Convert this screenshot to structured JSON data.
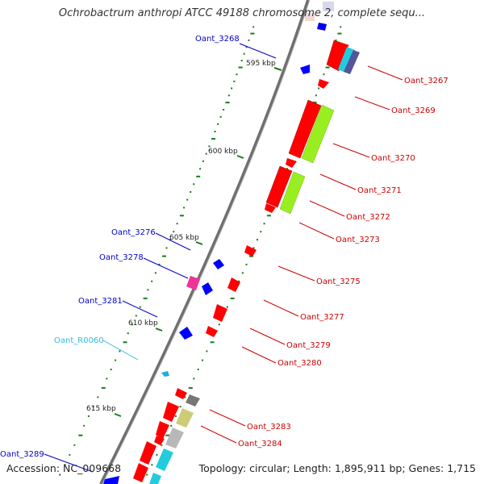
{
  "title": "Ochrobactrum anthropi ATCC 49188 chromosome 2, complete sequ...",
  "accession": "Accession: NC_009668",
  "topology": "Topology: circular; Length: 1,895,911 bp; Genes: 1,715",
  "colors": {
    "backbone": "#7f7f7f",
    "forward_gene": "#ff0000",
    "reverse_gene": "#0000ff",
    "rna_gene": "#33ccdd",
    "forward_label": "#cc0000",
    "reverse_label": "#0000cc",
    "rna_label": "#33bbdd",
    "tick_color": "#1a7a1a",
    "cog_green": "#99ee22",
    "cog_yellow": "#cccc77",
    "cog_magenta": "#ee3399",
    "cog_cyan": "#22ccdd",
    "cog_grey": "#777777",
    "cog_purple": "#555599"
  },
  "ruler": [
    "595 kbp",
    "600 kbp",
    "605 kbp",
    "610 kbp",
    "615 kbp"
  ],
  "labels_left": [
    {
      "text": "Oant_3268",
      "kind": "reverse"
    },
    {
      "text": "Oant_3276",
      "kind": "reverse"
    },
    {
      "text": "Oant_3278",
      "kind": "reverse"
    },
    {
      "text": "Oant_3281",
      "kind": "reverse"
    },
    {
      "text": "Oant_R0060",
      "kind": "rna"
    },
    {
      "text": "Oant_3289",
      "kind": "reverse"
    }
  ],
  "labels_right": [
    {
      "text": "Oant_3267"
    },
    {
      "text": "Oant_3269"
    },
    {
      "text": "Oant_3270"
    },
    {
      "text": "Oant_3271"
    },
    {
      "text": "Oant_3272"
    },
    {
      "text": "Oant_3273"
    },
    {
      "text": "Oant_3275"
    },
    {
      "text": "Oant_3277"
    },
    {
      "text": "Oant_3279"
    },
    {
      "text": "Oant_3280"
    },
    {
      "text": "Oant_3283"
    },
    {
      "text": "Oant_3284"
    }
  ]
}
